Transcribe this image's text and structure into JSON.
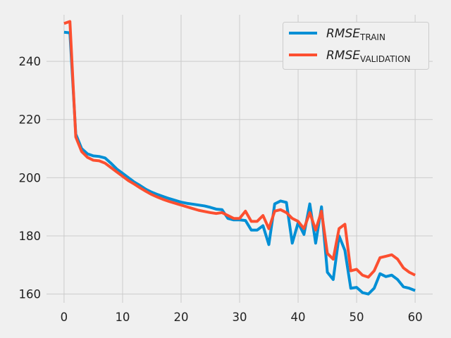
{
  "chart_data": {
    "type": "line",
    "title": "",
    "xlabel": "",
    "ylabel": "",
    "xlim": [
      -3,
      63
    ],
    "ylim": [
      157,
      256
    ],
    "xticks": [
      0,
      10,
      20,
      30,
      40,
      50,
      60
    ],
    "yticks": [
      160,
      180,
      200,
      220,
      240
    ],
    "grid": true,
    "legend_position": "upper right",
    "series": [
      {
        "name_main": "RMSE",
        "name_sub": "TRAIN",
        "color": "#008fd5",
        "x": [
          0,
          1,
          2,
          3,
          4,
          5,
          6,
          7,
          8,
          9,
          10,
          11,
          12,
          13,
          14,
          15,
          16,
          17,
          18,
          19,
          20,
          21,
          22,
          23,
          24,
          25,
          26,
          27,
          28,
          29,
          30,
          31,
          32,
          33,
          34,
          35,
          36,
          37,
          38,
          39,
          40,
          41,
          42,
          43,
          44,
          45,
          46,
          47,
          48,
          49,
          50,
          51,
          52,
          53,
          54,
          55,
          56,
          57,
          58,
          59,
          60
        ],
        "y": [
          250.0,
          249.8,
          215.0,
          210.0,
          208.2,
          207.5,
          207.3,
          206.8,
          205.0,
          203.0,
          201.5,
          200.0,
          198.5,
          197.3,
          196.0,
          195.0,
          194.2,
          193.5,
          192.8,
          192.2,
          191.6,
          191.2,
          190.9,
          190.6,
          190.3,
          189.8,
          189.2,
          189.0,
          186.0,
          185.5,
          185.5,
          185.3,
          182.0,
          182.0,
          183.5,
          177.0,
          191.0,
          192.0,
          191.5,
          177.5,
          184.5,
          180.5,
          191.0,
          177.5,
          190.0,
          167.5,
          165.0,
          180.0,
          175.0,
          162.0,
          162.3,
          160.5,
          160.0,
          162.0,
          167.0,
          166.0,
          166.5,
          165.0,
          162.5,
          162.0,
          161.2
        ]
      },
      {
        "name_main": "RMSE",
        "name_sub": "VALIDATION",
        "color": "#fc4f30",
        "x": [
          0,
          1,
          2,
          3,
          4,
          5,
          6,
          7,
          8,
          9,
          10,
          11,
          12,
          13,
          14,
          15,
          16,
          17,
          18,
          19,
          20,
          21,
          22,
          23,
          24,
          25,
          26,
          27,
          28,
          29,
          30,
          31,
          32,
          33,
          34,
          35,
          36,
          37,
          38,
          39,
          40,
          41,
          42,
          43,
          44,
          45,
          46,
          47,
          48,
          49,
          50,
          51,
          52,
          53,
          54,
          55,
          56,
          57,
          58,
          59,
          60
        ],
        "y": [
          253.0,
          253.7,
          214.0,
          209.0,
          207.0,
          206.0,
          205.8,
          205.0,
          203.5,
          202.0,
          200.5,
          199.0,
          197.8,
          196.5,
          195.3,
          194.2,
          193.3,
          192.5,
          191.8,
          191.2,
          190.6,
          190.0,
          189.4,
          188.8,
          188.4,
          188.0,
          187.7,
          188.0,
          187.0,
          186.0,
          186.0,
          188.5,
          185.0,
          185.0,
          187.0,
          182.5,
          188.5,
          189.0,
          188.0,
          186.0,
          185.0,
          182.5,
          188.0,
          182.0,
          188.5,
          174.0,
          172.0,
          182.5,
          184.0,
          168.0,
          168.5,
          166.5,
          165.8,
          168.0,
          172.5,
          173.0,
          173.5,
          172.0,
          169.0,
          167.5,
          166.5
        ]
      }
    ]
  }
}
